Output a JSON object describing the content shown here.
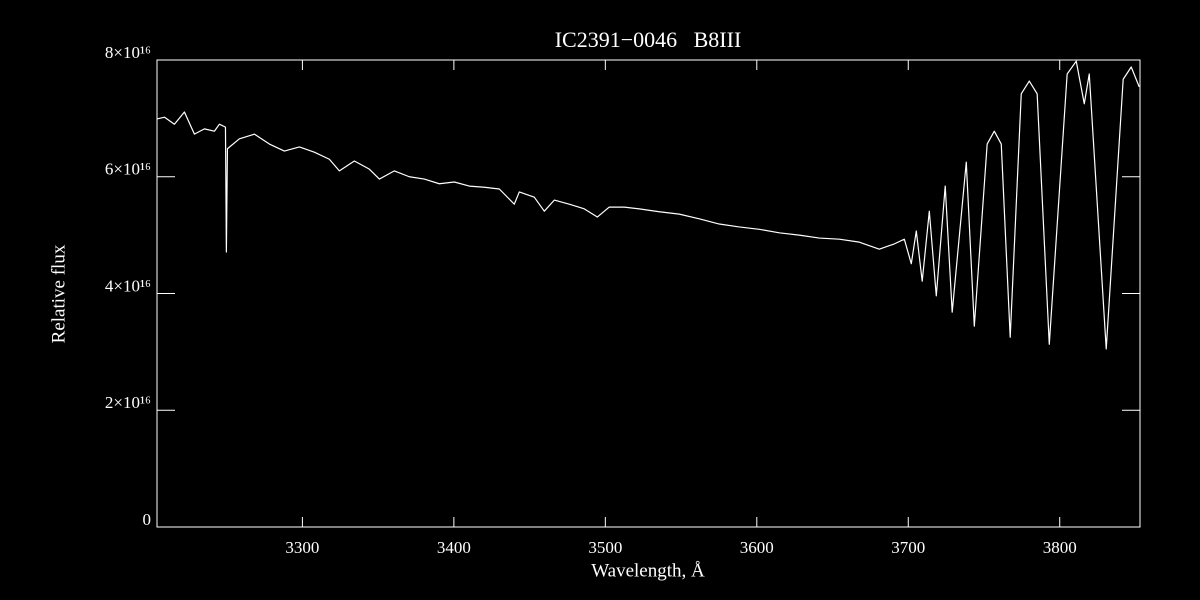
{
  "chart_data": {
    "type": "line",
    "title": "IC2391−0046   B8III",
    "xlabel": "Wavelength, Å",
    "ylabel": "Relative flux",
    "color": "#ffffff",
    "x": [
      3204,
      3209,
      3215.5,
      3222.1,
      3228.7,
      3235.3,
      3241.9,
      3245.2,
      3249.2,
      3249.8,
      3250.5,
      3258.4,
      3268.3,
      3278.2,
      3288.1,
      3298,
      3307.9,
      3317.8,
      3324.4,
      3334.3,
      3344.2,
      3350.8,
      3360.7,
      3370.6,
      3380.5,
      3390.4,
      3400.3,
      3410.2,
      3420.1,
      3430,
      3439.9,
      3443.2,
      3453.1,
      3459.7,
      3466.3,
      3476.2,
      3486.1,
      3494.7,
      3502.6,
      3512.5,
      3522.4,
      3535.6,
      3548.8,
      3562,
      3575.2,
      3588.4,
      3601.6,
      3614.8,
      3628,
      3641.3,
      3654.5,
      3667.7,
      3680.9,
      3690.8,
      3697.4,
      3702,
      3705.3,
      3709.2,
      3713.9,
      3718.5,
      3724.4,
      3729,
      3738.3,
      3743.6,
      3752.1,
      3756.8,
      3761.4,
      3767.3,
      3774.6,
      3779.9,
      3785.1,
      3793.1,
      3804.9,
      3810.9,
      3816.2,
      3819.5,
      3830.7,
      3841.9,
      3847.2,
      3852.5
    ],
    "values": [
      6.99e+16,
      7.02e+16,
      6.9e+16,
      7.11e+16,
      6.73e+16,
      6.82e+16,
      6.78e+16,
      6.9e+16,
      6.85e+16,
      4.71e+16,
      6.48e+16,
      6.65e+16,
      6.73e+16,
      6.56e+16,
      6.44e+16,
      6.51e+16,
      6.42e+16,
      6.3e+16,
      6.1e+16,
      6.27e+16,
      6.13e+16,
      5.96e+16,
      6.1e+16,
      6e+16,
      5.96e+16,
      5.88e+16,
      5.91e+16,
      5.84e+16,
      5.82e+16,
      5.79e+16,
      5.53e+16,
      5.74e+16,
      5.65e+16,
      5.41e+16,
      5.6e+16,
      5.53e+16,
      5.45e+16,
      5.31e+16,
      5.48e+16,
      5.48e+16,
      5.45e+16,
      5.4e+16,
      5.36e+16,
      5.28e+16,
      5.19e+16,
      5.14e+16,
      5.1e+16,
      5.04e+16,
      5e+16,
      4.95e+16,
      4.93e+16,
      4.88e+16,
      4.76e+16,
      4.85e+16,
      4.93e+16,
      4.51e+16,
      5.07e+16,
      4.21e+16,
      5.41e+16,
      3.96e+16,
      5.84e+16,
      3.68e+16,
      6.25e+16,
      3.44e+16,
      6.56e+16,
      6.78e+16,
      6.56e+16,
      3.25e+16,
      7.42e+16,
      7.64e+16,
      7.42e+16,
      3.13e+16,
      7.76e+16,
      7.98e+16,
      7.25e+16,
      7.76e+16,
      3.05e+16,
      7.67e+16,
      7.88e+16,
      7.54e+16
    ],
    "xlim": [
      3204,
      3853
    ],
    "xticks": [
      3300,
      3400,
      3500,
      3600,
      3700,
      3800
    ],
    "ylim": [
      0,
      8e+16
    ],
    "yticks": [
      0,
      {
        "value": 2e+16,
        "label": "2×10¹⁶"
      },
      {
        "value": 4e+16,
        "label": "4×10¹⁶"
      },
      {
        "value": 6e+16,
        "label": "6×10¹⁶"
      },
      {
        "value": 8e+16,
        "label": "8×10¹⁶"
      }
    ]
  }
}
